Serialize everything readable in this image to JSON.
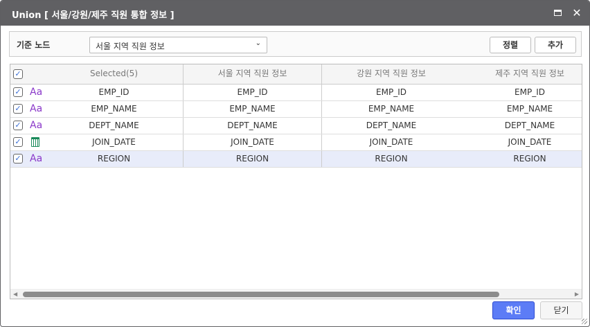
{
  "window": {
    "title": "Union [ 서울/강원/제주 직원 통합 정보 ]"
  },
  "toolbar": {
    "base_node_label": "기준 노드",
    "base_node_value": "서울 지역 직원 정보",
    "sort_label": "정렬",
    "add_label": "추가"
  },
  "grid": {
    "headers": [
      "Selected(5)",
      "서울 지역 직원 정보",
      "강원 지역 직원 정보",
      "제주 지역 직원 정보"
    ],
    "rows": [
      {
        "type": "text-icon",
        "cells": [
          "EMP_ID",
          "EMP_ID",
          "EMP_ID",
          "EMP_ID"
        ]
      },
      {
        "type": "text-icon",
        "cells": [
          "EMP_NAME",
          "EMP_NAME",
          "EMP_NAME",
          "EMP_NAME"
        ]
      },
      {
        "type": "text-icon",
        "cells": [
          "DEPT_NAME",
          "DEPT_NAME",
          "DEPT_NAME",
          "DEPT_NAME"
        ]
      },
      {
        "type": "calendar-icon",
        "cells": [
          "JOIN_DATE",
          "JOIN_DATE",
          "JOIN_DATE",
          "JOIN_DATE"
        ]
      },
      {
        "type": "text-icon",
        "cells": [
          "REGION",
          "REGION",
          "REGION",
          "REGION"
        ]
      }
    ],
    "type_text_glyph": "Aa",
    "check_glyph": "✓"
  },
  "footer": {
    "confirm_label": "확인",
    "close_label": "닫기"
  },
  "colors": {
    "titlebar": "#606063",
    "confirm": "#5c7cf6",
    "selected_row": "#e8ecfa",
    "text_type_icon": "#8a38c9",
    "calendar_icon": "#1a8a5a"
  }
}
